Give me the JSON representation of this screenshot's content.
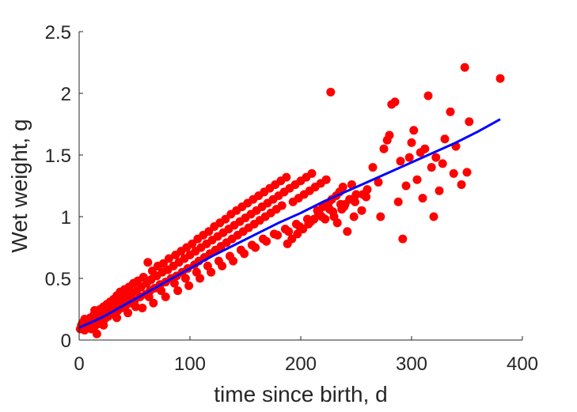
{
  "chart_data": {
    "type": "scatter",
    "title": "",
    "xlabel": "time since birth, d",
    "ylabel": "Wet weight, g",
    "xlim": [
      0,
      400
    ],
    "ylim": [
      0,
      2.5
    ],
    "xticks": [
      "0",
      "100",
      "200",
      "300",
      "400"
    ],
    "yticks": [
      "0",
      "0.5",
      "1",
      "1.5",
      "2",
      "2.5"
    ],
    "grid": false,
    "legend": "none",
    "colors": {
      "points": "#ff0000",
      "fit": "#0000ff",
      "axis": "#262626"
    },
    "fit_line": {
      "x": [
        0,
        20,
        40,
        60,
        80,
        100,
        120,
        140,
        160,
        180,
        200,
        220,
        240,
        260,
        280,
        300,
        320,
        340,
        360,
        380
      ],
      "y": [
        0.1,
        0.18,
        0.28,
        0.38,
        0.48,
        0.58,
        0.68,
        0.77,
        0.86,
        0.95,
        1.03,
        1.12,
        1.2,
        1.28,
        1.36,
        1.44,
        1.52,
        1.6,
        1.69,
        1.79
      ]
    },
    "points": [
      [
        1,
        0.09
      ],
      [
        2,
        0.12
      ],
      [
        3,
        0.14
      ],
      [
        4,
        0.11
      ],
      [
        5,
        0.08
      ],
      [
        6,
        0.13
      ],
      [
        7,
        0.1
      ],
      [
        8,
        0.15
      ],
      [
        9,
        0.12
      ],
      [
        10,
        0.18
      ],
      [
        11,
        0.09
      ],
      [
        12,
        0.14
      ],
      [
        13,
        0.2
      ],
      [
        14,
        0.11
      ],
      [
        15,
        0.16
      ],
      [
        16,
        0.22
      ],
      [
        17,
        0.13
      ],
      [
        18,
        0.19
      ],
      [
        19,
        0.25
      ],
      [
        20,
        0.15
      ],
      [
        21,
        0.21
      ],
      [
        22,
        0.27
      ],
      [
        23,
        0.17
      ],
      [
        24,
        0.23
      ],
      [
        25,
        0.29
      ],
      [
        26,
        0.19
      ],
      [
        27,
        0.26
      ],
      [
        28,
        0.31
      ],
      [
        29,
        0.21
      ],
      [
        30,
        0.28
      ],
      [
        31,
        0.33
      ],
      [
        32,
        0.22
      ],
      [
        33,
        0.3
      ],
      [
        34,
        0.36
      ],
      [
        35,
        0.24
      ],
      [
        36,
        0.32
      ],
      [
        37,
        0.39
      ],
      [
        38,
        0.26
      ],
      [
        40,
        0.34
      ],
      [
        41,
        0.41
      ],
      [
        42,
        0.28
      ],
      [
        44,
        0.36
      ],
      [
        45,
        0.43
      ],
      [
        46,
        0.3
      ],
      [
        48,
        0.38
      ],
      [
        49,
        0.46
      ],
      [
        50,
        0.32
      ],
      [
        52,
        0.4
      ],
      [
        53,
        0.48
      ],
      [
        55,
        0.35
      ],
      [
        56,
        0.43
      ],
      [
        58,
        0.51
      ],
      [
        60,
        0.37
      ],
      [
        61,
        0.46
      ],
      [
        62,
        0.63
      ],
      [
        64,
        0.4
      ],
      [
        65,
        0.49
      ],
      [
        66,
        0.56
      ],
      [
        68,
        0.42
      ],
      [
        70,
        0.52
      ],
      [
        71,
        0.6
      ],
      [
        73,
        0.45
      ],
      [
        75,
        0.55
      ],
      [
        76,
        0.62
      ],
      [
        78,
        0.47
      ],
      [
        80,
        0.57
      ],
      [
        81,
        0.66
      ],
      [
        83,
        0.5
      ],
      [
        85,
        0.6
      ],
      [
        87,
        0.69
      ],
      [
        88,
        0.52
      ],
      [
        90,
        0.63
      ],
      [
        92,
        0.72
      ],
      [
        93,
        0.55
      ],
      [
        95,
        0.66
      ],
      [
        97,
        0.75
      ],
      [
        98,
        0.58
      ],
      [
        100,
        0.69
      ],
      [
        102,
        0.78
      ],
      [
        104,
        0.61
      ],
      [
        105,
        0.72
      ],
      [
        107,
        0.82
      ],
      [
        108,
        0.64
      ],
      [
        110,
        0.75
      ],
      [
        112,
        0.85
      ],
      [
        113,
        0.67
      ],
      [
        115,
        0.78
      ],
      [
        117,
        0.88
      ],
      [
        118,
        0.7
      ],
      [
        120,
        0.81
      ],
      [
        122,
        0.92
      ],
      [
        123,
        0.73
      ],
      [
        125,
        0.84
      ],
      [
        127,
        0.95
      ],
      [
        128,
        0.76
      ],
      [
        130,
        0.87
      ],
      [
        132,
        0.98
      ],
      [
        133,
        0.79
      ],
      [
        135,
        0.9
      ],
      [
        137,
        1.02
      ],
      [
        138,
        0.82
      ],
      [
        140,
        0.93
      ],
      [
        142,
        1.05
      ],
      [
        143,
        0.85
      ],
      [
        145,
        0.96
      ],
      [
        147,
        1.08
      ],
      [
        148,
        0.88
      ],
      [
        150,
        0.99
      ],
      [
        152,
        1.11
      ],
      [
        153,
        0.91
      ],
      [
        155,
        1.02
      ],
      [
        157,
        1.14
      ],
      [
        158,
        0.94
      ],
      [
        160,
        1.05
      ],
      [
        162,
        1.17
      ],
      [
        163,
        0.97
      ],
      [
        165,
        1.08
      ],
      [
        167,
        1.2
      ],
      [
        168,
        1.0
      ],
      [
        170,
        1.11
      ],
      [
        172,
        1.23
      ],
      [
        173,
        1.03
      ],
      [
        175,
        1.14
      ],
      [
        177,
        1.26
      ],
      [
        178,
        1.06
      ],
      [
        180,
        1.17
      ],
      [
        182,
        1.29
      ],
      [
        183,
        1.09
      ],
      [
        185,
        1.2
      ],
      [
        187,
        1.32
      ],
      [
        188,
        0.78
      ],
      [
        190,
        1.23
      ],
      [
        192,
        0.82
      ],
      [
        193,
        1.12
      ],
      [
        195,
        1.26
      ],
      [
        197,
        0.86
      ],
      [
        198,
        1.15
      ],
      [
        200,
        1.29
      ],
      [
        202,
        0.9
      ],
      [
        203,
        1.18
      ],
      [
        205,
        1.32
      ],
      [
        207,
        0.94
      ],
      [
        208,
        1.21
      ],
      [
        210,
        1.35
      ],
      [
        212,
        0.98
      ],
      [
        213,
        1.24
      ],
      [
        215,
        1.05
      ],
      [
        217,
        1.02
      ],
      [
        218,
        1.27
      ],
      [
        220,
        1.08
      ],
      [
        222,
        0.98
      ],
      [
        223,
        1.3
      ],
      [
        225,
        1.11
      ],
      [
        227,
        2.01
      ],
      [
        228,
        1.14
      ],
      [
        230,
        1.0
      ],
      [
        232,
        1.17
      ],
      [
        233,
        0.95
      ],
      [
        235,
        1.2
      ],
      [
        237,
        1.06
      ],
      [
        238,
        1.24
      ],
      [
        240,
        1.1
      ],
      [
        242,
        0.88
      ],
      [
        244,
        1.14
      ],
      [
        246,
        1.26
      ],
      [
        248,
        1.0
      ],
      [
        250,
        1.18
      ],
      [
        255,
        1.05
      ],
      [
        260,
        1.22
      ],
      [
        265,
        1.4
      ],
      [
        270,
        1.28
      ],
      [
        272,
        1.0
      ],
      [
        275,
        1.55
      ],
      [
        278,
        1.62
      ],
      [
        280,
        1.66
      ],
      [
        282,
        1.91
      ],
      [
        285,
        1.93
      ],
      [
        288,
        1.12
      ],
      [
        290,
        1.45
      ],
      [
        292,
        0.82
      ],
      [
        295,
        1.25
      ],
      [
        298,
        1.48
      ],
      [
        300,
        1.6
      ],
      [
        302,
        1.7
      ],
      [
        305,
        1.3
      ],
      [
        308,
        1.52
      ],
      [
        310,
        1.15
      ],
      [
        312,
        1.55
      ],
      [
        315,
        1.98
      ],
      [
        318,
        1.4
      ],
      [
        320,
        1.0
      ],
      [
        322,
        1.48
      ],
      [
        325,
        1.21
      ],
      [
        328,
        1.43
      ],
      [
        330,
        1.63
      ],
      [
        335,
        1.85
      ],
      [
        338,
        1.35
      ],
      [
        340,
        1.57
      ],
      [
        345,
        1.26
      ],
      [
        348,
        2.21
      ],
      [
        350,
        1.36
      ],
      [
        352,
        1.77
      ],
      [
        380,
        2.12
      ],
      [
        5,
        0.17
      ],
      [
        14,
        0.24
      ],
      [
        27,
        0.2
      ],
      [
        39,
        0.3
      ],
      [
        51,
        0.27
      ],
      [
        63,
        0.35
      ],
      [
        74,
        0.4
      ],
      [
        86,
        0.46
      ],
      [
        96,
        0.5
      ],
      [
        106,
        0.55
      ],
      [
        116,
        0.6
      ],
      [
        126,
        0.64
      ],
      [
        136,
        0.68
      ],
      [
        146,
        0.73
      ],
      [
        156,
        0.77
      ],
      [
        166,
        0.82
      ],
      [
        176,
        0.86
      ],
      [
        186,
        0.9
      ],
      [
        196,
        0.94
      ],
      [
        206,
        0.98
      ],
      [
        216,
        1.02
      ],
      [
        226,
        1.06
      ],
      [
        236,
        1.1
      ],
      [
        246,
        1.14
      ],
      [
        256,
        1.18
      ],
      [
        16,
        0.05
      ],
      [
        22,
        0.12
      ],
      [
        34,
        0.18
      ],
      [
        44,
        0.22
      ],
      [
        57,
        0.26
      ],
      [
        67,
        0.3
      ],
      [
        78,
        0.35
      ],
      [
        89,
        0.4
      ],
      [
        99,
        0.44
      ],
      [
        109,
        0.5
      ],
      [
        119,
        0.55
      ],
      [
        129,
        0.6
      ],
      [
        139,
        0.64
      ],
      [
        149,
        0.7
      ],
      [
        159,
        0.75
      ],
      [
        169,
        0.8
      ],
      [
        179,
        0.85
      ],
      [
        189,
        0.88
      ],
      [
        199,
        0.92
      ],
      [
        209,
        0.96
      ],
      [
        219,
        1.0
      ],
      [
        229,
        1.04
      ],
      [
        239,
        1.08
      ],
      [
        249,
        1.12
      ],
      [
        259,
        1.16
      ]
    ]
  }
}
